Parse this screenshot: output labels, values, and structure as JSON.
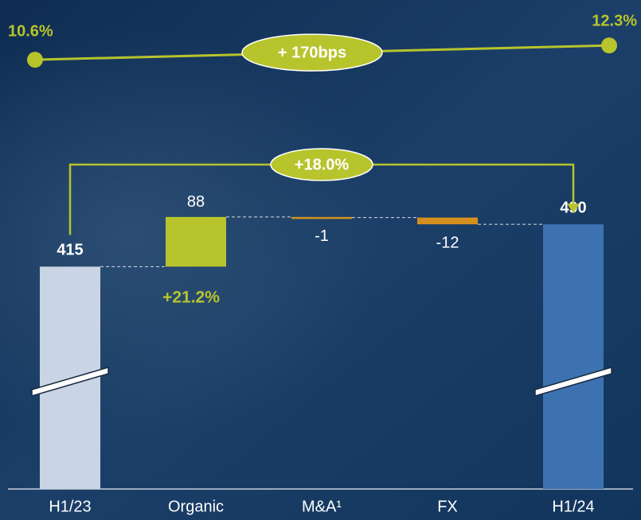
{
  "chart_data": {
    "type": "waterfall",
    "categories": [
      "H1/23",
      "Organic",
      "M&A¹",
      "FX",
      "H1/24"
    ],
    "values": [
      415,
      88,
      -1,
      -12,
      490
    ],
    "colors": [
      "#c9d4e4",
      "#b7c42c",
      "#d4901e",
      "#d4901e",
      "#3d72b0"
    ],
    "organic_growth_label": "+21.2%",
    "bridge_label": "+18.0%",
    "margin_line": {
      "values": [
        10.6,
        12.3
      ],
      "value_labels": [
        "10.6%",
        "12.3%"
      ],
      "color": "#b7c42c",
      "change_label": "+ 170bps"
    }
  }
}
